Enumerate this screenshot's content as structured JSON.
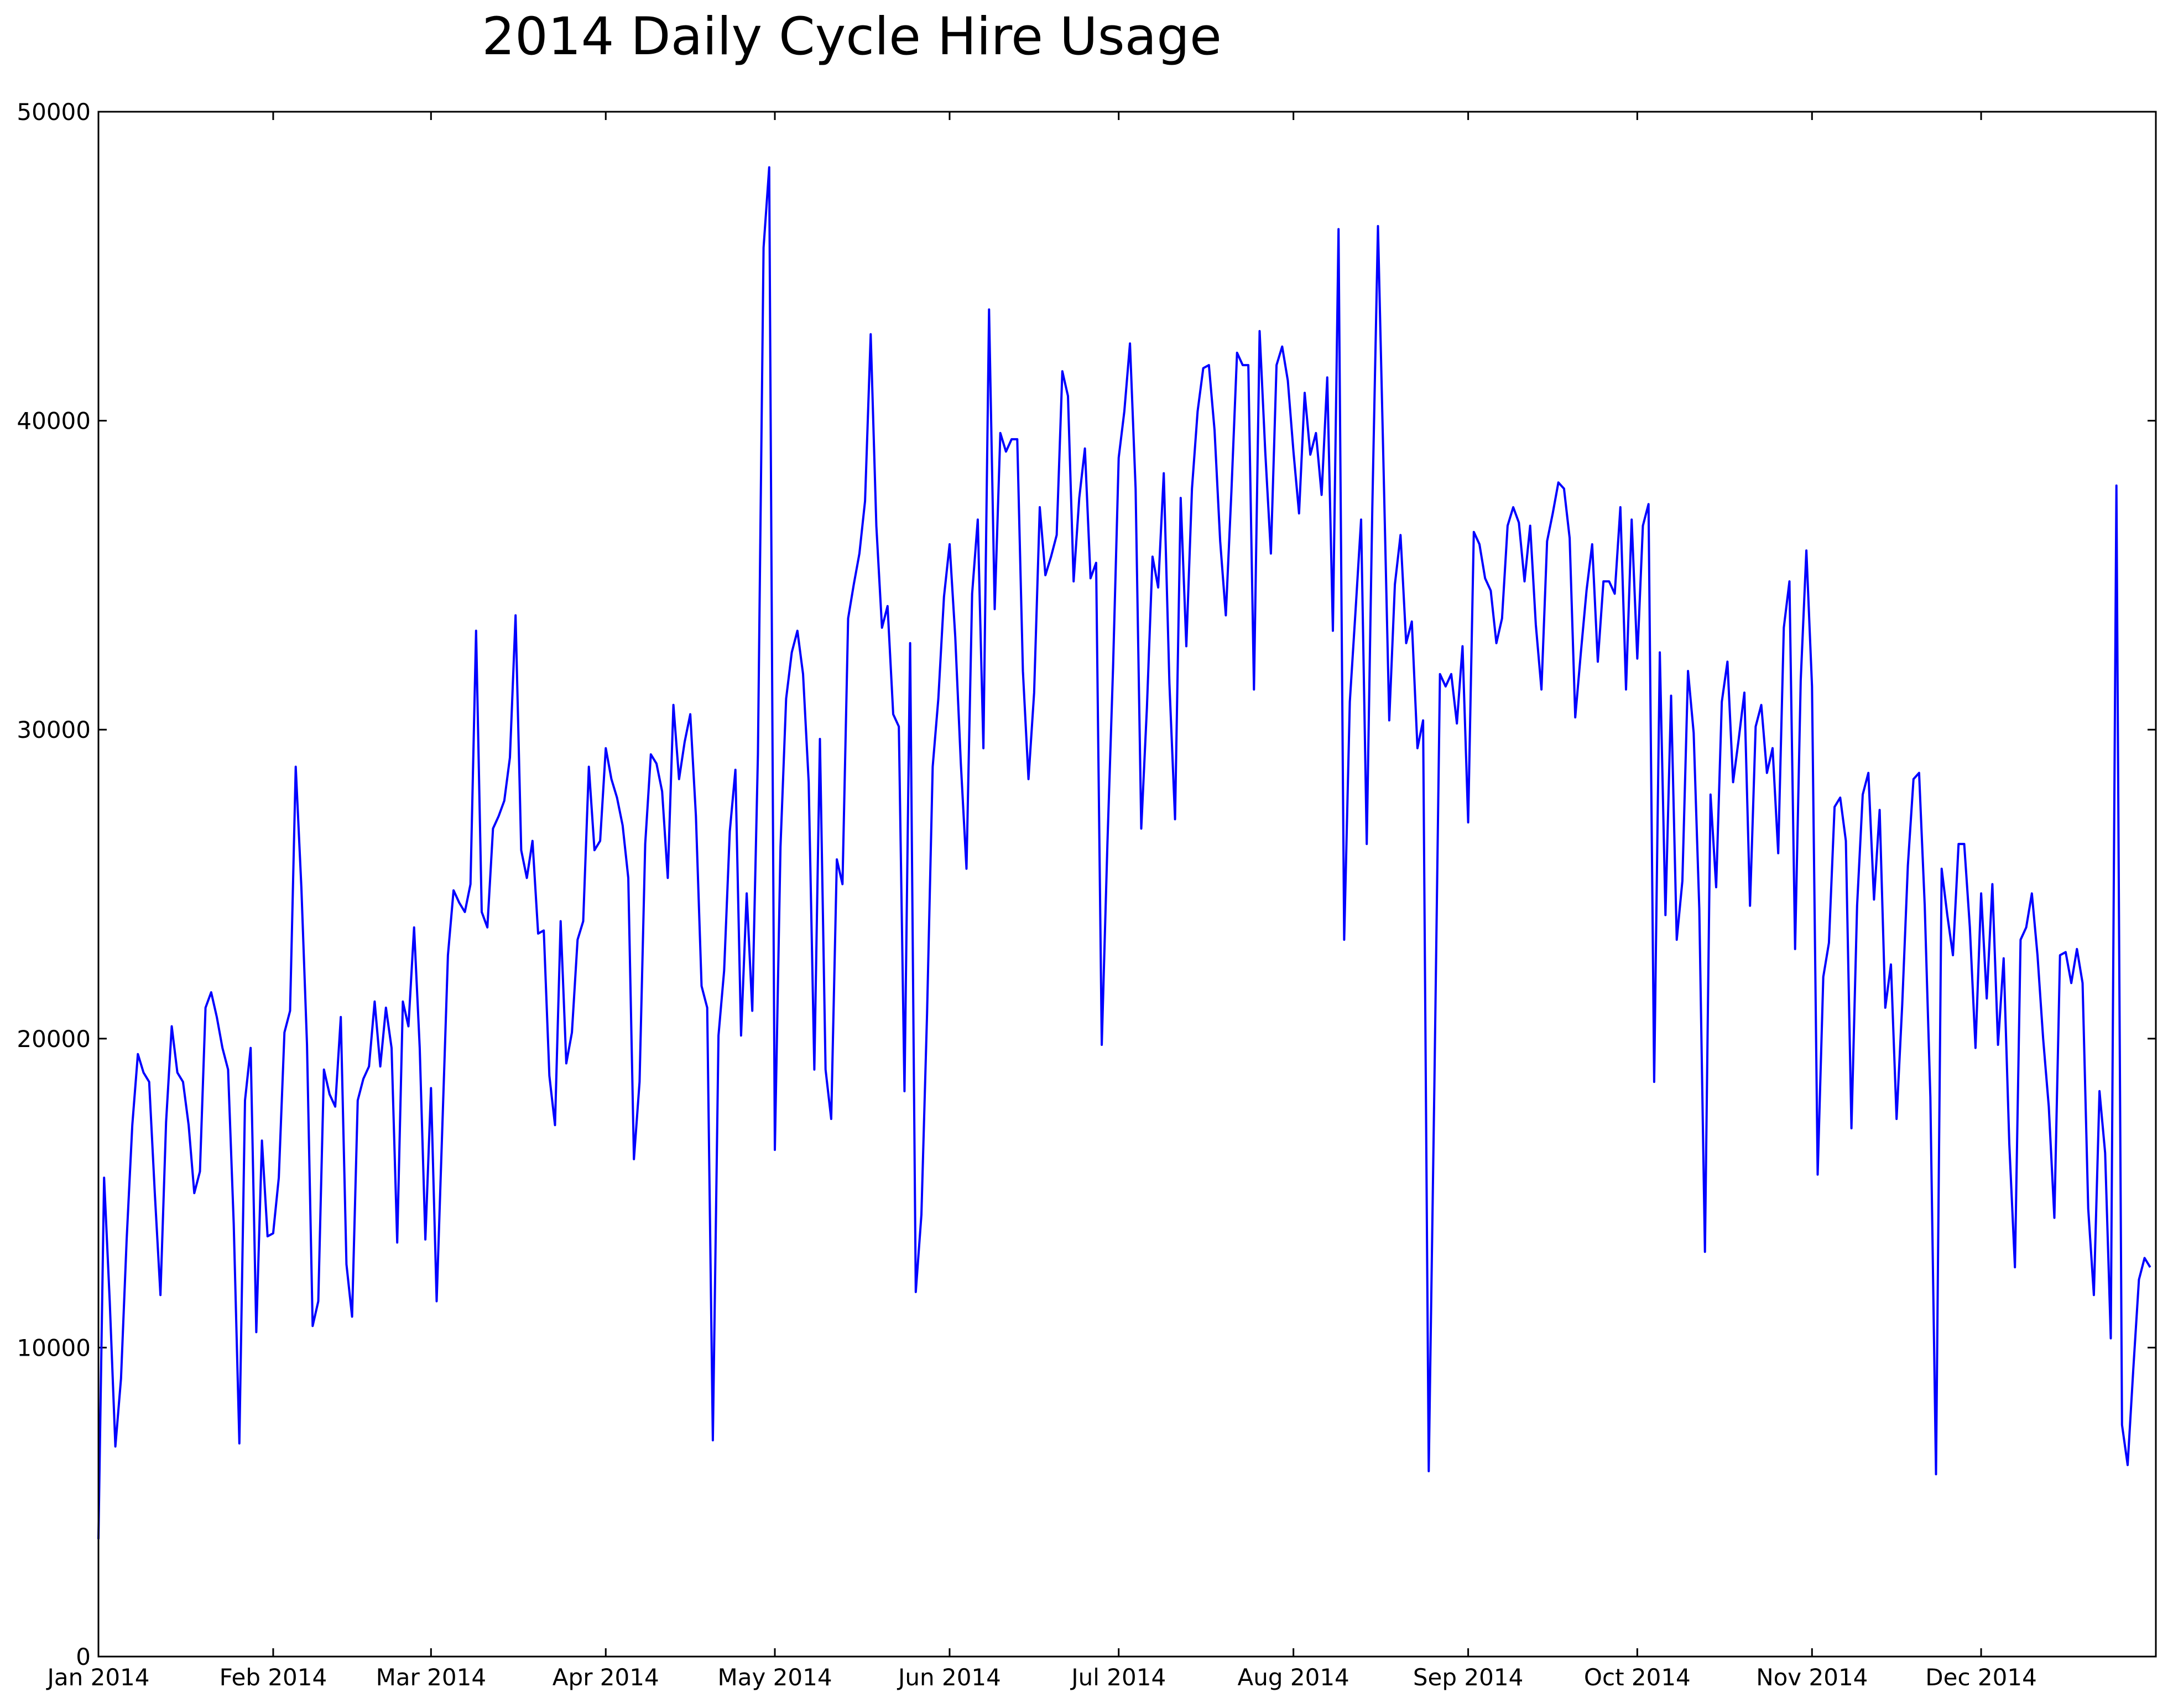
{
  "chart_data": {
    "type": "line",
    "title": "2014 Daily Cycle Hire Usage",
    "xlabel": "",
    "ylabel": "",
    "ylim": [
      0,
      50000
    ],
    "xlim": [
      "2014-01-01",
      "2015-01-01"
    ],
    "grid": false,
    "line_color": "#0000ff",
    "y_ticks": [
      0,
      10000,
      20000,
      30000,
      40000,
      50000
    ],
    "y_tick_labels": [
      "0",
      "10000",
      "20000",
      "30000",
      "40000",
      "50000"
    ],
    "x_ticks": [
      "2014-01-01",
      "2014-02-01",
      "2014-03-01",
      "2014-04-01",
      "2014-05-01",
      "2014-06-01",
      "2014-07-01",
      "2014-08-01",
      "2014-09-01",
      "2014-10-01",
      "2014-11-01",
      "2014-12-01"
    ],
    "x_tick_labels": [
      "Jan 2014",
      "Feb 2014",
      "Mar 2014",
      "Apr 2014",
      "May 2014",
      "Jun 2014",
      "Jul 2014",
      "Aug 2014",
      "Sep 2014",
      "Oct 2014",
      "Nov 2014",
      "Dec 2014"
    ],
    "series": [
      {
        "x_start": "2014-01-01",
        "x_step_days": 1,
        "values": [
          3800,
          15500,
          11500,
          6800,
          9000,
          13500,
          17200,
          19500,
          18900,
          18600,
          15000,
          11700,
          17300,
          20400,
          18900,
          18600,
          17200,
          15000,
          15700,
          21000,
          21500,
          20700,
          19700,
          19000,
          14000,
          6900,
          18000,
          19700,
          10500,
          16700,
          13600,
          13700,
          15500,
          20200,
          20900,
          28800,
          24900,
          19800,
          10700,
          11500,
          19000,
          18200,
          17800,
          20700,
          12700,
          11000,
          18000,
          18700,
          19100,
          21200,
          19100,
          21000,
          19700,
          13400,
          21200,
          20400,
          23600,
          19700,
          13500,
          18400,
          11500,
          17100,
          22700,
          24800,
          24400,
          24100,
          25000,
          33200,
          24100,
          23600,
          26800,
          27200,
          27700,
          29100,
          33700,
          26100,
          25200,
          26400,
          23400,
          23500,
          18800,
          17200,
          23800,
          19200,
          20200,
          23200,
          23800,
          28800,
          26100,
          26400,
          29400,
          28400,
          27800,
          26900,
          25200,
          16100,
          18600,
          26300,
          29200,
          28900,
          28000,
          25200,
          30800,
          28400,
          29600,
          30500,
          27200,
          21700,
          21000,
          7000,
          20100,
          22200,
          26700,
          28700,
          20100,
          24700,
          20900,
          29200,
          45600,
          48200,
          16400,
          26200,
          31000,
          32500,
          33200,
          31800,
          28300,
          19000,
          29700,
          19000,
          17400,
          25800,
          25000,
          33600,
          34700,
          35700,
          37400,
          42800,
          36600,
          33300,
          34000,
          30500,
          30100,
          18300,
          32800,
          11800,
          14300,
          20800,
          28800,
          31000,
          34300,
          36000,
          33000,
          28900,
          25500,
          34400,
          36800,
          29400,
          43600,
          33900,
          39600,
          39000,
          39400,
          39400,
          31900,
          28400,
          31200,
          37200,
          35000,
          35600,
          36300,
          41600,
          40800,
          34800,
          37500,
          39100,
          34900,
          35400,
          19800,
          26300,
          32000,
          38800,
          40300,
          42500,
          37800,
          26800,
          30700,
          35600,
          34600,
          38300,
          31500,
          27100,
          37500,
          32700,
          37800,
          40300,
          41700,
          41800,
          39700,
          36100,
          33700,
          37700,
          42200,
          41800,
          41800,
          31300,
          42900,
          39000,
          35700,
          41800,
          42400,
          41300,
          39000,
          37000,
          40900,
          38900,
          39600,
          37600,
          41400,
          33200,
          46200,
          23200,
          30900,
          33800,
          36800,
          26300,
          37200,
          46300,
          38400,
          30300,
          34700,
          36300,
          32800,
          33500,
          29400,
          30300,
          6000,
          18500,
          31800,
          31400,
          31800,
          30200,
          32700,
          27000,
          36400,
          36000,
          34900,
          34500,
          32800,
          33600,
          36600,
          37200,
          36700,
          34800,
          36600,
          33400,
          31300,
          36100,
          37000,
          38000,
          37800,
          36200,
          30400,
          32500,
          34500,
          36000,
          32200,
          34800,
          34800,
          34400,
          37200,
          31300,
          36800,
          32300,
          36600,
          37300,
          18600,
          32500,
          24000,
          31100,
          23200,
          25100,
          31900,
          29900,
          24200,
          13100,
          27900,
          24900,
          30900,
          32200,
          28300,
          29700,
          31200,
          24300,
          30100,
          30800,
          28600,
          29400,
          26000,
          33300,
          34800,
          22900,
          31600,
          35800,
          31400,
          15600,
          22000,
          23100,
          27500,
          27800,
          26400,
          17100,
          24300,
          27900,
          28600,
          24500,
          27400,
          21000,
          22400,
          17400,
          21100,
          25600,
          28400,
          28600,
          24300,
          18100,
          5900,
          25500,
          24000,
          22700,
          26300,
          26300,
          23600,
          19700,
          24700,
          21300,
          25000,
          19800,
          22600,
          16600,
          12600,
          23200,
          23600,
          24700,
          22700,
          20000,
          17800,
          14200,
          22700,
          22800,
          21800,
          22900,
          21800,
          14500,
          11700,
          18300,
          16300,
          10300,
          37900,
          7500,
          6200,
          9300,
          12200,
          12900,
          12600
        ]
      }
    ]
  }
}
